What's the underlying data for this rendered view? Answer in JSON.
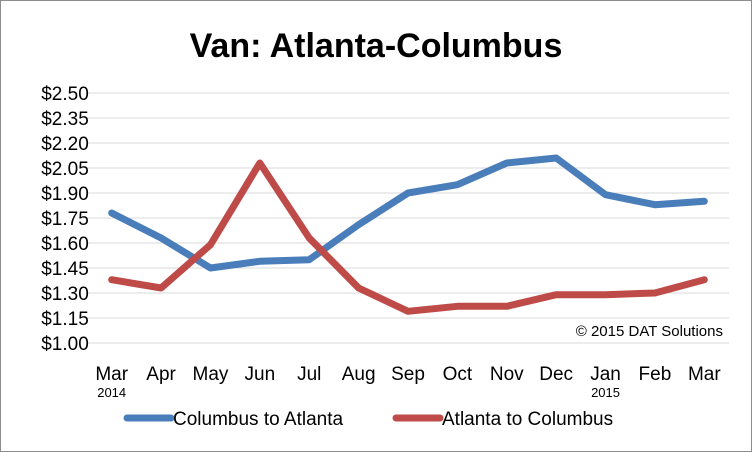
{
  "chart_data": {
    "type": "line",
    "title": "Van: Atlanta-Columbus",
    "categories": [
      "Mar",
      "Apr",
      "May",
      "Jun",
      "Jul",
      "Aug",
      "Sep",
      "Oct",
      "Nov",
      "Dec",
      "Jan",
      "Feb",
      "Mar"
    ],
    "year_labels": [
      "2014",
      "",
      "",
      "",
      "",
      "",
      "",
      "",
      "",
      "",
      "2015",
      "",
      ""
    ],
    "y_tick_labels": [
      "$2.50",
      "$2.35",
      "$2.20",
      "$2.05",
      "$1.90",
      "$1.75",
      "$1.60",
      "$1.45",
      "$1.30",
      "$1.15",
      "$1.00"
    ],
    "ylim": [
      1.0,
      2.5
    ],
    "y_step": 0.15,
    "grid": true,
    "legend_position": "bottom",
    "annotation": "© 2015 DAT Solutions",
    "series": [
      {
        "name": "Columbus to Atlanta",
        "color": "#4a7ebb",
        "values": [
          1.78,
          1.63,
          1.45,
          1.49,
          1.5,
          1.71,
          1.9,
          1.95,
          2.08,
          2.11,
          1.89,
          1.83,
          1.85
        ]
      },
      {
        "name": "Atlanta to Columbus",
        "color": "#be4b48",
        "values": [
          1.38,
          1.33,
          1.59,
          2.08,
          1.63,
          1.33,
          1.19,
          1.22,
          1.22,
          1.29,
          1.29,
          1.3,
          1.38
        ]
      }
    ]
  }
}
